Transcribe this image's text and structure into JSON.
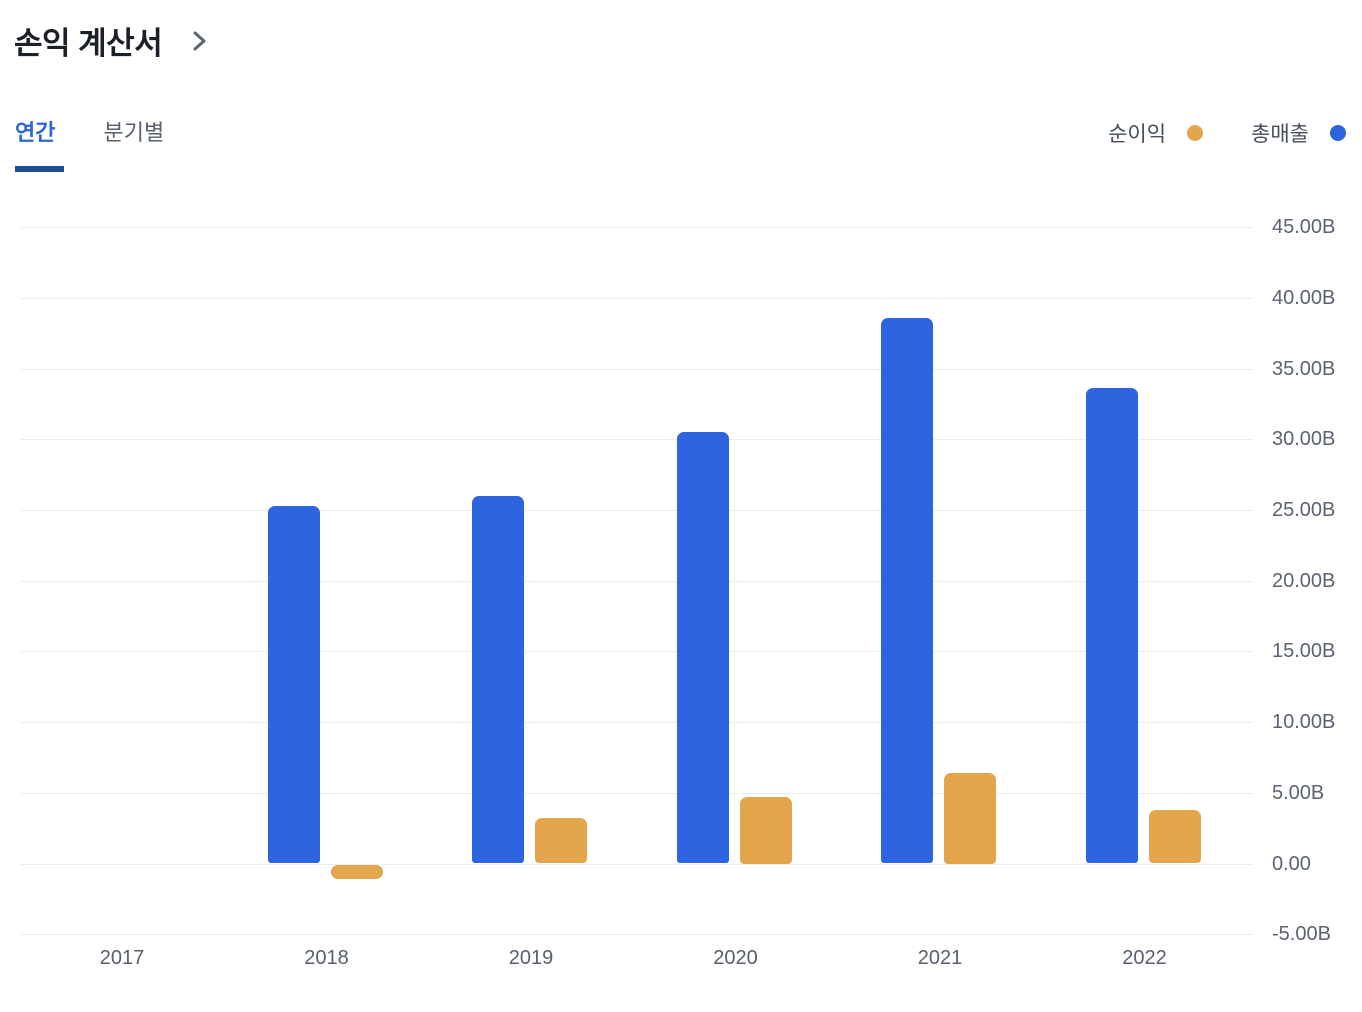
{
  "header": {
    "title": "손익 계산서"
  },
  "tabs": {
    "annual_label": "연간",
    "quarterly_label": "분기별",
    "active": "annual"
  },
  "legend": [
    {
      "label": "순이익",
      "color": "#e4a64d"
    },
    {
      "label": "총매출",
      "color": "#2d64df"
    }
  ],
  "chart_data": {
    "type": "bar",
    "categories": [
      "2017",
      "2018",
      "2019",
      "2020",
      "2021",
      "2022"
    ],
    "series": [
      {
        "name": "총매출",
        "color": "#2d64df",
        "values": [
          null,
          25.3,
          26.0,
          30.5,
          38.6,
          33.6
        ]
      },
      {
        "name": "순이익",
        "color": "#e4a64d",
        "values": [
          null,
          -1.0,
          3.2,
          4.7,
          6.4,
          3.8
        ]
      }
    ],
    "unit": "B",
    "ylim": [
      -5,
      45
    ],
    "ytick_step": 5,
    "yticks": [
      {
        "value": 45,
        "label": "45.00B"
      },
      {
        "value": 40,
        "label": "40.00B"
      },
      {
        "value": 35,
        "label": "35.00B"
      },
      {
        "value": 30,
        "label": "30.00B"
      },
      {
        "value": 25,
        "label": "25.00B"
      },
      {
        "value": 20,
        "label": "20.00B"
      },
      {
        "value": 15,
        "label": "15.00B"
      },
      {
        "value": 10,
        "label": "10.00B"
      },
      {
        "value": 5,
        "label": "5.00B"
      },
      {
        "value": 0,
        "label": "0.00"
      },
      {
        "value": -5,
        "label": "-5.00B"
      }
    ],
    "grid": true,
    "yaxis_position": "right",
    "legend_position": "top-right",
    "title": "손익 계산서"
  }
}
